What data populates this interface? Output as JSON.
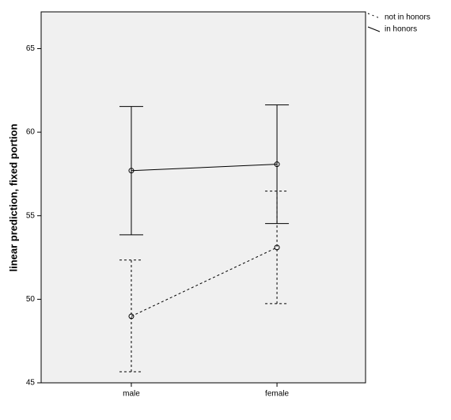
{
  "chart_data": {
    "type": "line",
    "y_label": "linear prediction, fixed portion",
    "categories": [
      "male",
      "female"
    ],
    "ylim": [
      45,
      67.2
    ],
    "yticks": [
      45,
      50,
      55,
      60,
      65
    ],
    "series": [
      {
        "name": "not in honors",
        "color": "#000000",
        "line_style": "dashed",
        "values": [
          48.98,
          53.1
        ],
        "lower": [
          45.66,
          49.74
        ],
        "upper": [
          52.35,
          56.47
        ]
      },
      {
        "name": "in honors",
        "color": "#000000",
        "line_style": "solid",
        "values": [
          57.7,
          58.08
        ],
        "lower": [
          53.86,
          54.53
        ],
        "upper": [
          61.54,
          61.63
        ]
      }
    ]
  }
}
